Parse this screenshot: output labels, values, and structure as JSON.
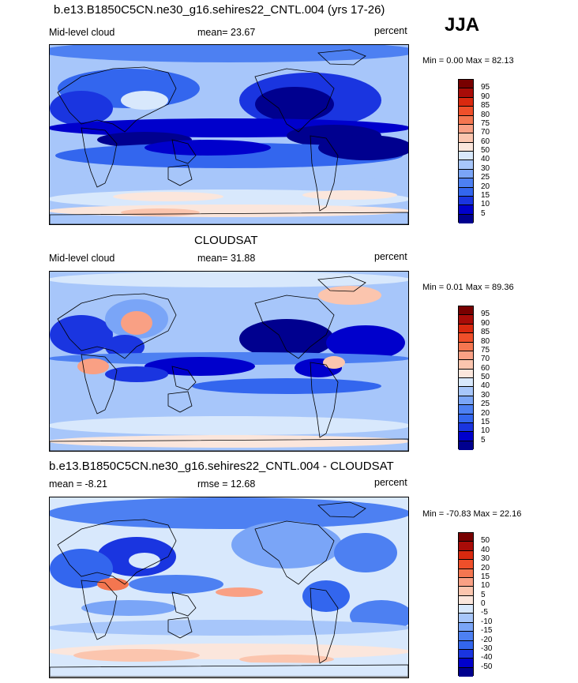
{
  "season": "JJA",
  "colors": {
    "abs_scale": [
      "#00008f",
      "#0000cc",
      "#1a35e0",
      "#3366ee",
      "#4d80f2",
      "#7aa5f7",
      "#a7c6fa",
      "#d8e8fc",
      "#fbe6dc",
      "#fbc5ae",
      "#f9a084",
      "#f47650",
      "#ef4f2a",
      "#d9290f",
      "#a80c08",
      "#780000"
    ],
    "diff_scale": [
      "#00008f",
      "#0000cc",
      "#1a35e0",
      "#3366ee",
      "#4d80f2",
      "#7aa5f7",
      "#a7c6fa",
      "#d8e8fc",
      "#fbe6dc",
      "#fbc5ae",
      "#f9a084",
      "#f47650",
      "#ef4f2a",
      "#d9290f",
      "#a80c08",
      "#780000"
    ]
  },
  "chart_data": [
    {
      "type": "heatmap",
      "title": "b.e13.B1850C5CN.ne30_g16.sehires22_CNTL.004 (yrs 17-26)",
      "left_label": "Mid-level cloud",
      "stat_label": "mean=  23.67",
      "mean": 23.67,
      "units": "percent",
      "minmax": "Min =   0.00 Max =  82.13",
      "min": 0.0,
      "max": 82.13,
      "levels": [
        5,
        10,
        15,
        20,
        25,
        30,
        40,
        50,
        60,
        70,
        75,
        80,
        85,
        90,
        95
      ],
      "level_labels": [
        "5",
        "10",
        "15",
        "20",
        "25",
        "30",
        "40",
        "50",
        "60",
        "70",
        "75",
        "80",
        "85",
        "90",
        "95"
      ]
    },
    {
      "type": "heatmap",
      "title": "CLOUDSAT",
      "left_label": "Mid-level cloud",
      "stat_label": "mean=  31.88",
      "mean": 31.88,
      "units": "percent",
      "minmax": "Min =   0.01 Max =  89.36",
      "min": 0.01,
      "max": 89.36,
      "levels": [
        5,
        10,
        15,
        20,
        25,
        30,
        40,
        50,
        60,
        70,
        75,
        80,
        85,
        90,
        95
      ],
      "level_labels": [
        "5",
        "10",
        "15",
        "20",
        "25",
        "30",
        "40",
        "50",
        "60",
        "70",
        "75",
        "80",
        "85",
        "90",
        "95"
      ]
    },
    {
      "type": "heatmap",
      "title": "b.e13.B1850C5CN.ne30_g16.sehires22_CNTL.004 - CLOUDSAT",
      "left_label": "mean =  -8.21",
      "stat_label": "rmse =  12.68",
      "mean": -8.21,
      "rmse": 12.68,
      "units": "percent",
      "minmax": "Min = -70.83 Max =  22.16",
      "min": -70.83,
      "max": 22.16,
      "levels": [
        -50,
        -40,
        -30,
        -20,
        -15,
        -10,
        -5,
        0,
        5,
        10,
        15,
        20,
        30,
        40,
        50
      ],
      "level_labels": [
        "-50",
        "-40",
        "-30",
        "-20",
        "-15",
        "-10",
        "-5",
        "0",
        "5",
        "10",
        "15",
        "20",
        "30",
        "40",
        "50"
      ]
    }
  ]
}
